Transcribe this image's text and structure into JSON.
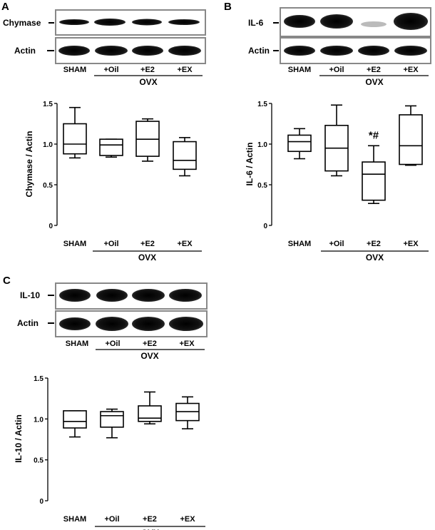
{
  "panels": [
    {
      "letter": "A",
      "blot_labels": [
        "Chymase",
        "Actin"
      ],
      "lane_labels": [
        "SHAM",
        "+Oil",
        "+E2",
        "+EX"
      ],
      "group_label": "OVX",
      "annotation": ""
    },
    {
      "letter": "B",
      "blot_labels": [
        "IL-6",
        "Actin"
      ],
      "lane_labels": [
        "SHAM",
        "+Oil",
        "+E2",
        "+EX"
      ],
      "group_label": "OVX",
      "annotation": "*#"
    },
    {
      "letter": "C",
      "blot_labels": [
        "IL-10",
        "Actin"
      ],
      "lane_labels": [
        "SHAM",
        "+Oil",
        "+E2",
        "+EX"
      ],
      "group_label": "OVX",
      "annotation": ""
    }
  ],
  "chart_data": [
    {
      "type": "box",
      "panel": "A",
      "categories": [
        "SHAM",
        "+Oil",
        "+E2",
        "+EX"
      ],
      "group_label": "OVX",
      "ylabel": "Chymase / Actin",
      "ylim": [
        0,
        1.5
      ],
      "yticks": [
        "0",
        "0.5",
        "1.0",
        "1.5"
      ],
      "boxes": [
        {
          "min": 0.83,
          "q1": 0.88,
          "median": 1.0,
          "q3": 1.25,
          "max": 1.45
        },
        {
          "min": 0.84,
          "q1": 0.86,
          "median": 0.99,
          "q3": 1.06,
          "max": 1.06
        },
        {
          "min": 0.79,
          "q1": 0.85,
          "median": 1.06,
          "q3": 1.28,
          "max": 1.31
        },
        {
          "min": 0.61,
          "q1": 0.69,
          "median": 0.8,
          "q3": 1.03,
          "max": 1.08
        }
      ],
      "annotations": []
    },
    {
      "type": "box",
      "panel": "B",
      "categories": [
        "SHAM",
        "+Oil",
        "+E2",
        "+EX"
      ],
      "group_label": "OVX",
      "ylabel": "IL-6 / Actin",
      "ylim": [
        0,
        1.5
      ],
      "yticks": [
        "0",
        "0.5",
        "1.0",
        "1.5"
      ],
      "boxes": [
        {
          "min": 0.82,
          "q1": 0.91,
          "median": 1.03,
          "q3": 1.11,
          "max": 1.19
        },
        {
          "min": 0.61,
          "q1": 0.67,
          "median": 0.95,
          "q3": 1.23,
          "max": 1.48
        },
        {
          "min": 0.27,
          "q1": 0.31,
          "median": 0.63,
          "q3": 0.78,
          "max": 0.98
        },
        {
          "min": 0.74,
          "q1": 0.75,
          "median": 0.98,
          "q3": 1.36,
          "max": 1.47
        }
      ],
      "annotations": [
        {
          "category": "+E2",
          "text": "*#"
        }
      ]
    },
    {
      "type": "box",
      "panel": "C",
      "categories": [
        "SHAM",
        "+Oil",
        "+E2",
        "+EX"
      ],
      "group_label": "OVX",
      "ylabel": "IL-10 / Actin",
      "ylim": [
        0,
        1.5
      ],
      "yticks": [
        "0",
        "0.5",
        "1.0",
        "1.5"
      ],
      "boxes": [
        {
          "min": 0.78,
          "q1": 0.89,
          "median": 0.97,
          "q3": 1.1,
          "max": 1.1
        },
        {
          "min": 0.77,
          "q1": 0.9,
          "median": 1.04,
          "q3": 1.09,
          "max": 1.12
        },
        {
          "min": 0.94,
          "q1": 0.97,
          "median": 1.01,
          "q3": 1.16,
          "max": 1.33
        },
        {
          "min": 0.88,
          "q1": 0.98,
          "median": 1.09,
          "q3": 1.19,
          "max": 1.27
        }
      ],
      "annotations": []
    }
  ]
}
